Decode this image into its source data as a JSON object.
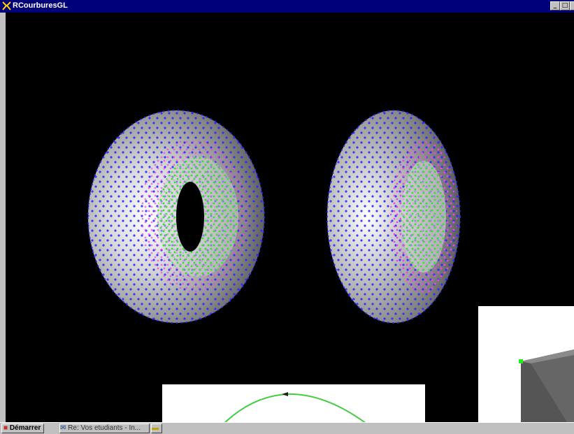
{
  "window": {
    "title": "RCourburesGL",
    "controls": [
      "minimize",
      "maximize",
      "close"
    ]
  },
  "taskbar": {
    "start_label": "Démarrer",
    "tasks": [
      {
        "label": "Re: Vos etudiants - In..."
      },
      {
        "label": ""
      }
    ]
  },
  "colors": {
    "title_bar": "#00007b",
    "canvas_bg": "#000000",
    "dots_blue": "#2a2aff",
    "dots_green": "#22ee22",
    "dots_magenta": "#ee44ee",
    "curve": "#44cc44"
  },
  "icons": [
    "app-icon",
    "windows-logo-icon",
    "envelope-icon",
    "folder-icon"
  ]
}
